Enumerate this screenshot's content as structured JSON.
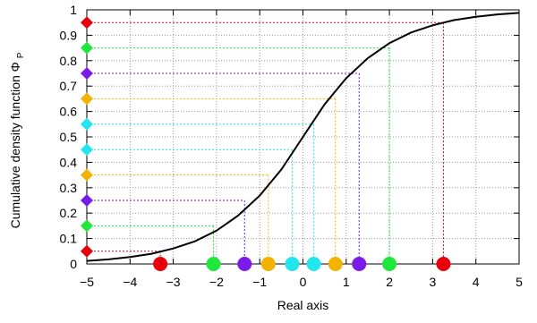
{
  "chart_data": {
    "type": "line",
    "title": "",
    "xlabel": "Real axis",
    "ylabel_main": "Cumulative density function Φ",
    "ylabel_sub": "P",
    "xlim": [
      -5,
      5
    ],
    "ylim": [
      0,
      1
    ],
    "xticks": [
      -5,
      -4,
      -3,
      -2,
      -1,
      0,
      1,
      2,
      3,
      4,
      5
    ],
    "yticks": [
      0,
      0.1,
      0.2,
      0.3,
      0.4,
      0.5,
      0.6,
      0.7,
      0.8,
      0.9,
      1
    ],
    "xtick_labels": [
      "−5",
      "−4",
      "−3",
      "−2",
      "−1",
      "0",
      "1",
      "2",
      "3",
      "4",
      "5"
    ],
    "ytick_labels": [
      "0",
      "0.1",
      "0.2",
      "0.3",
      "0.4",
      "0.5",
      "0.6",
      "0.7",
      "0.8",
      "0.9",
      "1"
    ],
    "grid": true,
    "curve": {
      "color": "#000000",
      "points": [
        [
          -5.0,
          0.012
        ],
        [
          -4.5,
          0.018
        ],
        [
          -4.0,
          0.027
        ],
        [
          -3.5,
          0.04
        ],
        [
          -3.0,
          0.061
        ],
        [
          -2.5,
          0.089
        ],
        [
          -2.0,
          0.131
        ],
        [
          -1.5,
          0.19
        ],
        [
          -1.0,
          0.269
        ],
        [
          -0.5,
          0.372
        ],
        [
          0.0,
          0.5
        ],
        [
          0.5,
          0.628
        ],
        [
          1.0,
          0.731
        ],
        [
          1.5,
          0.81
        ],
        [
          2.0,
          0.869
        ],
        [
          2.5,
          0.911
        ],
        [
          3.0,
          0.939
        ],
        [
          3.5,
          0.96
        ],
        [
          4.0,
          0.973
        ],
        [
          4.5,
          0.982
        ],
        [
          5.0,
          0.988
        ]
      ]
    },
    "quantiles": [
      {
        "p": 0.05,
        "x": -3.3,
        "color": "#e8000b"
      },
      {
        "p": 0.15,
        "x": -2.07,
        "color": "#1ee83c"
      },
      {
        "p": 0.25,
        "x": -1.35,
        "color": "#7a1be8"
      },
      {
        "p": 0.35,
        "x": -0.8,
        "color": "#f2b300"
      },
      {
        "p": 0.45,
        "x": -0.25,
        "color": "#22e5ee"
      },
      {
        "p": 0.55,
        "x": 0.25,
        "color": "#22e5ee"
      },
      {
        "p": 0.65,
        "x": 0.75,
        "color": "#f2b300"
      },
      {
        "p": 0.75,
        "x": 1.3,
        "color": "#7a1be8"
      },
      {
        "p": 0.85,
        "x": 2.0,
        "color": "#1ee83c"
      },
      {
        "p": 0.95,
        "x": 3.25,
        "color": "#e8000b"
      }
    ]
  }
}
